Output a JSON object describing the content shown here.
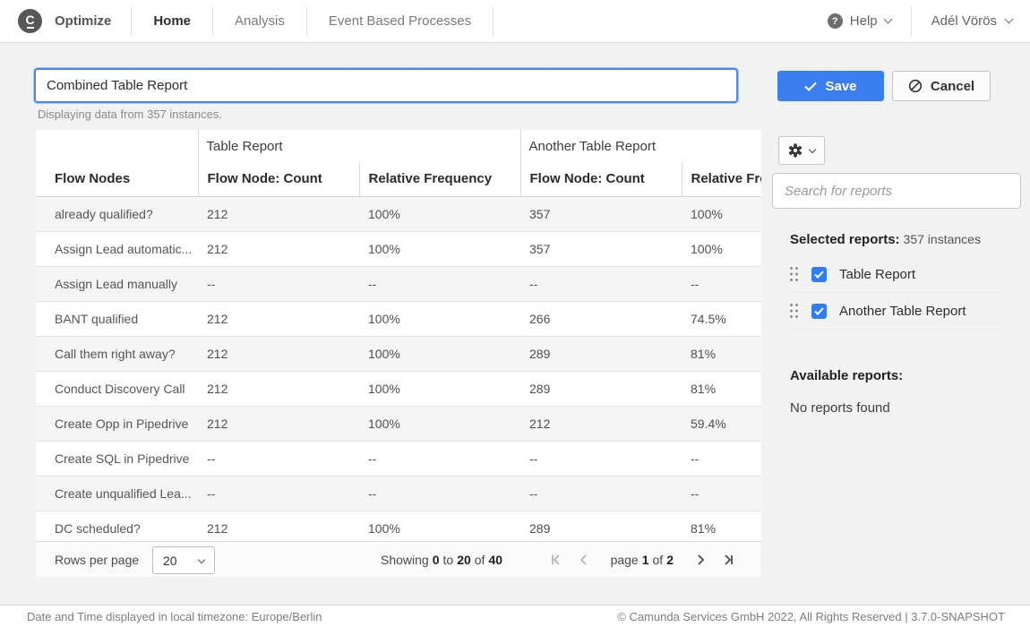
{
  "nav": {
    "brand": "Optimize",
    "items": [
      {
        "label": "Home",
        "active": true
      },
      {
        "label": "Analysis",
        "active": false
      },
      {
        "label": "Event Based Processes",
        "active": false
      }
    ],
    "help": "Help",
    "user": "Adél Vörös"
  },
  "toolbar": {
    "title_value": "Combined Table Report",
    "subtitle": "Displaying data from 357 instances.",
    "save": "Save",
    "cancel": "Cancel"
  },
  "table": {
    "groups": [
      "Table Report",
      "Another Table Report"
    ],
    "columns": [
      "Flow Nodes",
      "Flow Node: Count",
      "Relative Frequency",
      "Flow Node: Count",
      "Relative Frequency"
    ],
    "rows": [
      [
        "already qualified?",
        "212",
        "100%",
        "357",
        "100%"
      ],
      [
        "Assign Lead automatic...",
        "212",
        "100%",
        "357",
        "100%"
      ],
      [
        "Assign Lead manually",
        "--",
        "--",
        "--",
        "--"
      ],
      [
        "BANT qualified",
        "212",
        "100%",
        "266",
        "74.5%"
      ],
      [
        "Call them right away?",
        "212",
        "100%",
        "289",
        "81%"
      ],
      [
        "Conduct Discovery Call",
        "212",
        "100%",
        "289",
        "81%"
      ],
      [
        "Create Opp in Pipedrive",
        "212",
        "100%",
        "212",
        "59.4%"
      ],
      [
        "Create SQL in Pipedrive",
        "--",
        "--",
        "--",
        "--"
      ],
      [
        "Create unqualified Lea...",
        "--",
        "--",
        "--",
        "--"
      ],
      [
        "DC scheduled?",
        "212",
        "100%",
        "289",
        "81%"
      ]
    ],
    "pagination": {
      "rows_per_page_label": "Rows per page",
      "page_size": "20",
      "showing_word": "Showing",
      "from": "0",
      "to_word": "to",
      "to": "20",
      "of_word": "of",
      "total": "40",
      "page_word": "page",
      "page": "1",
      "pages": "2"
    }
  },
  "panel": {
    "search_placeholder": "Search for reports",
    "selected_heading": "Selected reports:",
    "selected_count": "357 instances",
    "reports": [
      {
        "label": "Table Report",
        "checked": true
      },
      {
        "label": "Another Table Report",
        "checked": true
      }
    ],
    "available_heading": "Available reports:",
    "available_empty": "No reports found"
  },
  "footer": {
    "left": "Date and Time displayed in local timezone: Europe/Berlin",
    "right": "© Camunda Services GmbH 2022, All Rights Reserved | 3.7.0-SNAPSHOT"
  },
  "colors": {
    "accent_blue": "#3b7ef0",
    "checkbox_blue": "#2e7cf6",
    "page_background": "#f2f2f2"
  },
  "icons": {
    "logo_letter": "C",
    "help_glyph": "?"
  }
}
